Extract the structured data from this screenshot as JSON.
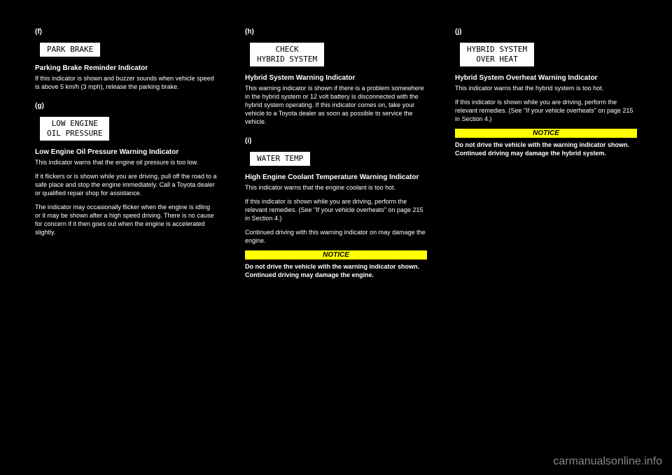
{
  "col1": {
    "s1": {
      "label": "(f)",
      "box": "PARK BRAKE",
      "title": "Parking Brake Reminder Indicator",
      "para": "If this indicator is shown and buzzer sounds when vehicle speed is above 5 km/h (3 mph), release the parking brake."
    },
    "s2": {
      "label": "(g)",
      "box": "LOW ENGINE\nOIL PRESSURE",
      "title": "Low Engine Oil Pressure Warning Indicator",
      "para1": "This indicator warns that the engine oil pressure is too low.",
      "para2": "If it flickers or is shown while you are driving, pull off the road to a safe place and stop the engine immediately. Call a Toyota dealer or qualified repair shop for assistance.",
      "para3": "The indicator may occasionally flicker when the engine is idling or it may be shown after a high speed driving. There is no cause for concern if it then goes out when the engine is accelerated slightly."
    }
  },
  "col2": {
    "s1": {
      "label": "(h)",
      "box": "CHECK\nHYBRID SYSTEM",
      "title": "Hybrid System Warning Indicator",
      "para": "This warning indicator is shown if there is a problem somewhere in the hybrid system or 12 volt battery is disconnected with the hybrid system operating. If this indicator comes on, take your vehicle to a Toyota dealer as soon as possible to service the vehicle."
    },
    "s2": {
      "label": "(i)",
      "box": "WATER TEMP",
      "title": "High Engine Coolant Temperature Warning Indicator",
      "para1": "This indicator warns that the engine coolant is too hot.",
      "para2": "If this indicator is shown while you are driving, perform the relevant remedies. (See \"If your vehicle overheats\" on page 215 in Section 4.)",
      "para3": "Continued driving with this warning indicator on may damage the engine.",
      "noticeTitle": "NOTICE",
      "notice": "Do not drive the vehicle with the warning indicator shown. Continued driving may damage the engine."
    }
  },
  "col3": {
    "s1": {
      "label": "(j)",
      "box": "HYBRID SYSTEM\n OVER HEAT ",
      "title": "Hybrid System Overheat Warning Indicator",
      "para1": "This indicator warns that the hybrid system is too hot.",
      "para2": "If this indicator is shown while you are driving, perform the relevant remedies. (See \"If your vehicle overheats\" on page 215 in Section 4.)",
      "noticeTitle": "NOTICE",
      "notice": "Do not drive the vehicle with the warning indicator shown. Continued driving may damage the hybrid system."
    }
  },
  "watermark": "carmanualsonline.info"
}
